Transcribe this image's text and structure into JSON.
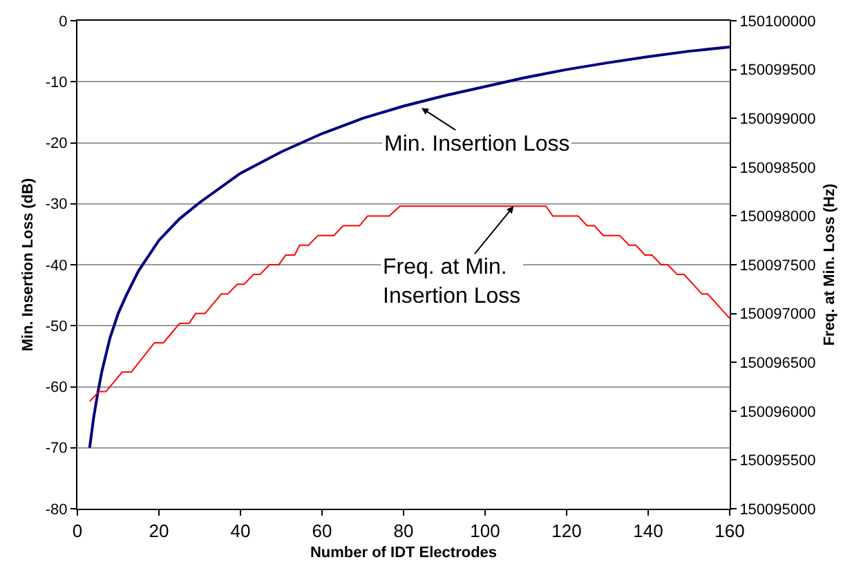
{
  "chart_data": {
    "type": "line",
    "xlabel": "Number of IDT Electrodes",
    "ylabel": "Min. Insertion Loss (dB)",
    "y2label": "Freq. at Min. Loss (Hz)",
    "series": [
      {
        "color": "#000080",
        "x": [
          3,
          4,
          5,
          6,
          8,
          10,
          12,
          15,
          20,
          25,
          30,
          40,
          50,
          60,
          70,
          80,
          90,
          100,
          110,
          120,
          130,
          140,
          150,
          160
        ],
        "values": [
          -70,
          -65,
          -61,
          -57.5,
          -52,
          -48,
          -45,
          -41,
          -36,
          -32.5,
          -29.8,
          -25,
          -21.5,
          -18.5,
          -16,
          -14,
          -12.3,
          -10.8,
          -9.3,
          -8,
          -6.9,
          -5.9,
          -5,
          -4.3
        ]
      },
      {
        "color": "#ff0000",
        "axis": "y2",
        "x": [
          3,
          5.3,
          7,
          11,
          13.2,
          18.9,
          21.1,
          25.1,
          27.4,
          29,
          31.3,
          35.3,
          36.9,
          39.2,
          40.9,
          43.2,
          44.8,
          47.1,
          49.4,
          51.1,
          53.3,
          54.5,
          56.7,
          59,
          62.9,
          65.2,
          69.2,
          71.2,
          76.5,
          79.1,
          114.9,
          116.6,
          122.8,
          125,
          126.8,
          129,
          133,
          135.3,
          137,
          139.2,
          140.9,
          143.2,
          144.8,
          147.1,
          148.8,
          153.2,
          154.6,
          160
        ],
        "values": [
          150096100,
          150096200,
          150096200,
          150096400,
          150096400,
          150096700,
          150096700,
          150096900,
          150096900,
          150097000,
          150097000,
          150097200,
          150097200,
          150097300,
          150097300,
          150097400,
          150097400,
          150097500,
          150097500,
          150097600,
          150097600,
          150097700,
          150097700,
          150097800,
          150097800,
          150097900,
          150097900,
          150098000,
          150098000,
          150098100,
          150098100,
          150098000,
          150098000,
          150097900,
          150097900,
          150097800,
          150097800,
          150097700,
          150097700,
          150097600,
          150097600,
          150097500,
          150097500,
          150097400,
          150097400,
          150097200,
          150097200,
          150096950
        ]
      }
    ],
    "annotations": [
      {
        "text": "Min. Insertion Loss",
        "x": 84.4,
        "y": -14.3
      },
      {
        "text": "Freq. at Min.\nInsertion Loss",
        "x": 107,
        "y": -30.4
      }
    ],
    "xlim": [
      0,
      160
    ],
    "xticks": [
      0,
      20,
      40,
      60,
      80,
      100,
      120,
      140,
      160
    ],
    "ylim": [
      -80,
      0
    ],
    "yticks": [
      -80,
      -70,
      -60,
      -50,
      -40,
      -30,
      -20,
      -10,
      0
    ],
    "y2lim": [
      150095000,
      150100000
    ],
    "y2ticks": [
      150095000,
      150095500,
      150096000,
      150096500,
      150097000,
      150097500,
      150098000,
      150098500,
      150099000,
      150099500,
      150100000
    ],
    "grid": "y",
    "marker": "none",
    "line_style": "solid"
  }
}
